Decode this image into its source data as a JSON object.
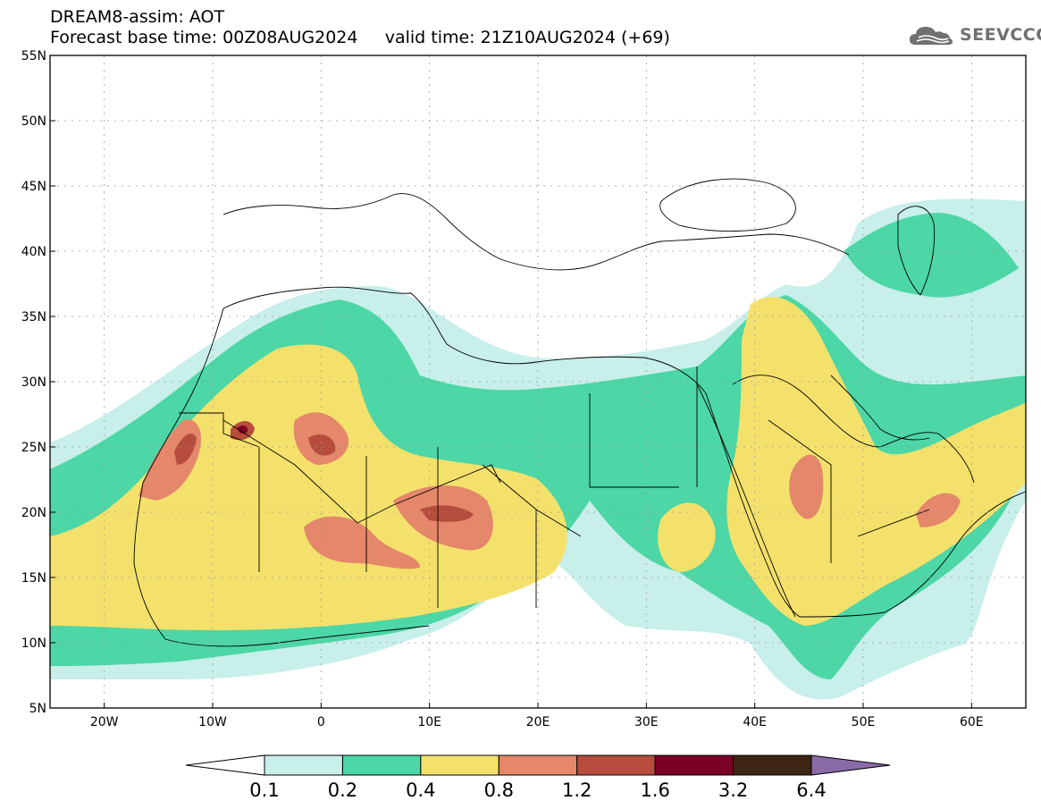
{
  "header": {
    "title": "DREAM8-assim: AOT",
    "base_time_label": "Forecast base time: 00Z08AUG2024",
    "valid_time_label": "valid time: 21Z10AUG2024 (+69)"
  },
  "logo": {
    "text": "SEEVCCC",
    "icon": "cloud-logo-icon"
  },
  "map": {
    "region": "North Africa / Middle East",
    "lon_range": [
      -25,
      65
    ],
    "lat_range": [
      5,
      55
    ],
    "lat_ticks": [
      {
        "value": 55,
        "label": "55N"
      },
      {
        "value": 50,
        "label": "50N"
      },
      {
        "value": 45,
        "label": "45N"
      },
      {
        "value": 40,
        "label": "40N"
      },
      {
        "value": 35,
        "label": "35N"
      },
      {
        "value": 30,
        "label": "30N"
      },
      {
        "value": 25,
        "label": "25N"
      },
      {
        "value": 20,
        "label": "20N"
      },
      {
        "value": 15,
        "label": "15N"
      },
      {
        "value": 10,
        "label": "10N"
      },
      {
        "value": 5,
        "label": "5N"
      }
    ],
    "lon_ticks": [
      {
        "value": -20,
        "label": "20W"
      },
      {
        "value": -10,
        "label": "10W"
      },
      {
        "value": 0,
        "label": "0"
      },
      {
        "value": 10,
        "label": "10E"
      },
      {
        "value": 20,
        "label": "20E"
      },
      {
        "value": 30,
        "label": "30E"
      },
      {
        "value": 40,
        "label": "40E"
      },
      {
        "value": 50,
        "label": "50E"
      },
      {
        "value": 60,
        "label": "60E"
      }
    ],
    "grid": true
  },
  "colorbar": {
    "labels": [
      "0.1",
      "0.2",
      "0.4",
      "0.8",
      "1.2",
      "1.6",
      "3.2",
      "6.4"
    ],
    "colors": [
      "#ffffff",
      "#c8efea",
      "#4dd6a6",
      "#f4e16c",
      "#e4876a",
      "#b64c3c",
      "#7a0024",
      "#3d2414",
      "#8a6aa8"
    ]
  }
}
